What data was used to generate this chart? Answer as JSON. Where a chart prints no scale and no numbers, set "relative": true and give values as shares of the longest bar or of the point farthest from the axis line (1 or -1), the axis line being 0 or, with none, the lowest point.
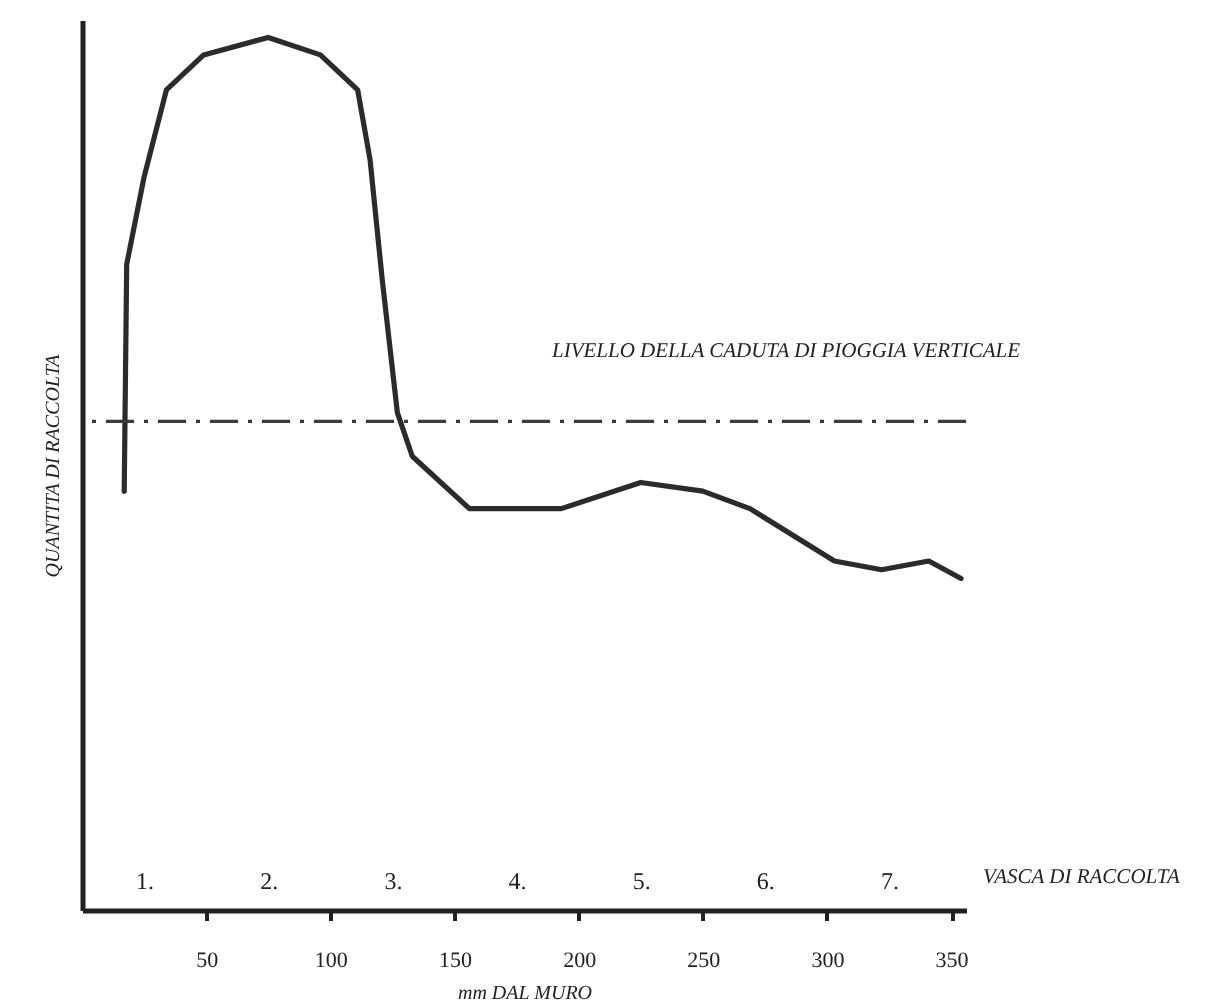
{
  "chart_data": {
    "type": "line",
    "xlabel": "mm DAL MURO",
    "ylabel": "QUANTITA DI RACCOLTA",
    "x2label": "VASCA DI RACCOLTA",
    "relative": true,
    "x": [
      17,
      18,
      25,
      34,
      49,
      75,
      96,
      111,
      116,
      121,
      127,
      133,
      156,
      171,
      193,
      225,
      250,
      269,
      303,
      322,
      341,
      354
    ],
    "series": [
      {
        "color": "#2b2b2b",
        "values": [
          0.48,
          0.74,
          0.84,
          0.94,
          0.98,
          1,
          0.98,
          0.94,
          0.86,
          0.72,
          0.57,
          0.52,
          0.46,
          0.46,
          0.46,
          0.49,
          0.48,
          0.46,
          0.4,
          0.39,
          0.4,
          0.38
        ]
      }
    ],
    "xlim": [
      0,
      356
    ],
    "xticks": [
      50,
      100,
      150,
      200,
      250,
      300,
      350
    ],
    "x2lim": [
      0.5,
      7.62
    ],
    "x2ticks": [
      {
        "value": 1,
        "label": "1."
      },
      {
        "value": 2,
        "label": "2."
      },
      {
        "value": 3,
        "label": "3."
      },
      {
        "value": 4,
        "label": "4."
      },
      {
        "value": 5,
        "label": "5."
      },
      {
        "value": 6,
        "label": "6."
      },
      {
        "value": 7,
        "label": "7."
      }
    ],
    "ref_lines": [
      {
        "axis": "y",
        "value": 0.56,
        "label": "LIVELLO DELLA CADUTA DI PIOGGIA VERTICALE",
        "line_style": "dashed",
        "color": "#3a3a3a"
      }
    ],
    "line_style": "solid"
  }
}
